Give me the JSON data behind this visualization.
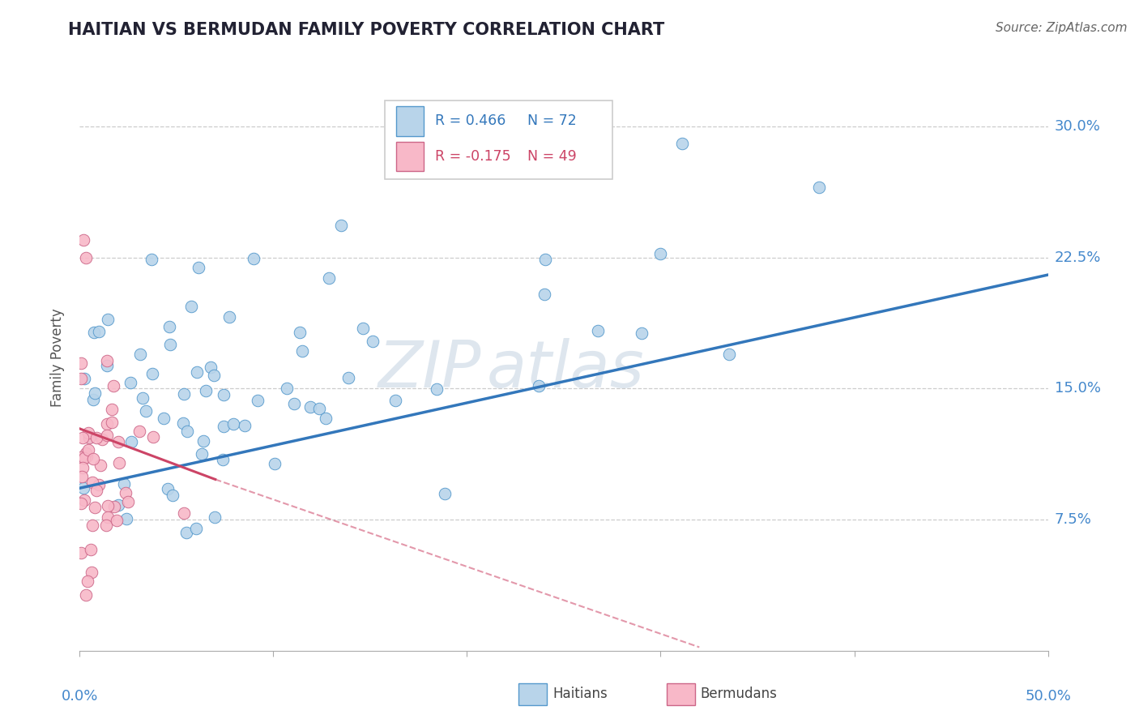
{
  "title": "HAITIAN VS BERMUDAN FAMILY POVERTY CORRELATION CHART",
  "source": "Source: ZipAtlas.com",
  "ylabel": "Family Poverty",
  "watermark_zip": "ZIP",
  "watermark_atlas": "atlas",
  "haitian_R": 0.466,
  "haitian_N": 72,
  "bermudan_R": -0.175,
  "bermudan_N": 49,
  "haitian_color": "#b8d4ea",
  "haitian_edge_color": "#5599cc",
  "haitian_line_color": "#3377bb",
  "bermudan_color": "#f8b8c8",
  "bermudan_edge_color": "#cc6688",
  "bermudan_line_color": "#cc4466",
  "title_color": "#222233",
  "source_color": "#666666",
  "axis_label_color": "#4488cc",
  "ylabel_color": "#555555",
  "ytick_labels": [
    "7.5%",
    "15.0%",
    "22.5%",
    "30.0%"
  ],
  "ytick_values": [
    0.075,
    0.15,
    0.225,
    0.3
  ],
  "xlim": [
    0.0,
    0.5
  ],
  "ylim": [
    0.0,
    0.335
  ],
  "blue_line_x0": 0.0,
  "blue_line_y0": 0.093,
  "blue_line_x1": 0.5,
  "blue_line_y1": 0.215,
  "pink_line_x0": 0.0,
  "pink_line_y0": 0.127,
  "pink_line_x1_solid": 0.07,
  "pink_line_y1_solid": 0.098,
  "pink_line_x1_dash": 0.32,
  "pink_line_y1_dash": 0.002
}
